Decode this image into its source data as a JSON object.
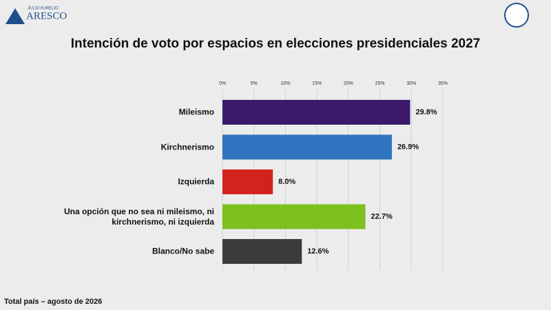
{
  "header": {
    "logo_small": "JULIO AURELIO",
    "logo": "ARESCO"
  },
  "chart_data": {
    "type": "hbar",
    "title": "Intención de voto por espacios en elecciones presidenciales 2027",
    "categories": [
      "Mileismo",
      "Kirchnerismo",
      "Izquierda",
      "Una opción que no sea ni mileismo, ni kirchnerismo, ni izquierda",
      "Blanco/No sabe"
    ],
    "values": [
      29.8,
      26.9,
      8.0,
      22.7,
      12.6
    ],
    "value_labels": [
      "29.8%",
      "26.9%",
      "8.0%",
      "22.7%",
      "12.6%"
    ],
    "colors": [
      "#3b1a6c",
      "#2f74bf",
      "#d2241c",
      "#7cc11f",
      "#3b3b3b"
    ],
    "xlim": [
      0,
      35
    ],
    "xticks": [
      {
        "value": 0,
        "label": "0%"
      },
      {
        "value": 5,
        "label": "5%"
      },
      {
        "value": 10,
        "label": "10%"
      },
      {
        "value": 15,
        "label": "15%"
      },
      {
        "value": 20,
        "label": "20%"
      },
      {
        "value": 25,
        "label": "25%"
      },
      {
        "value": 30,
        "label": "30%"
      },
      {
        "value": 35,
        "label": "35%"
      }
    ],
    "grid": true
  },
  "footer": "Total país – agosto de 2026"
}
